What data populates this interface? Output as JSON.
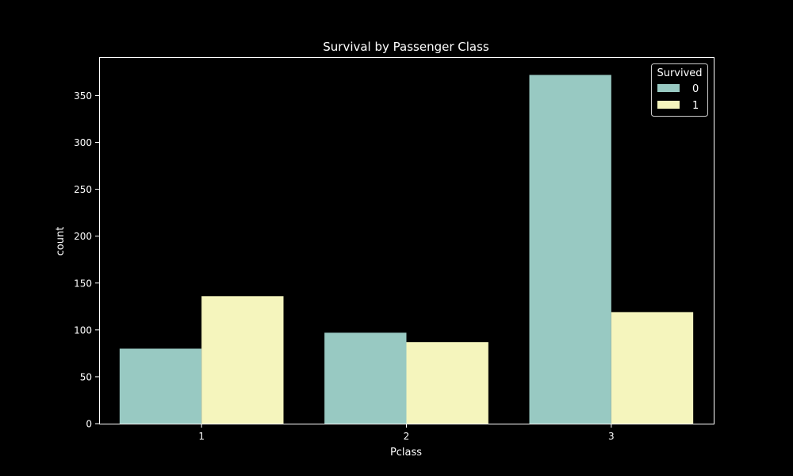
{
  "chart_data": {
    "type": "bar",
    "title": "Survival by Passenger Class",
    "xlabel": "Pclass",
    "ylabel": "count",
    "categories": [
      "1",
      "2",
      "3"
    ],
    "series": [
      {
        "name": "0",
        "values": [
          80,
          97,
          372
        ],
        "color": "#98c9c2"
      },
      {
        "name": "1",
        "values": [
          136,
          87,
          119
        ],
        "color": "#f5f5bd"
      }
    ],
    "ylim": [
      0,
      391
    ],
    "yticks": [
      0,
      50,
      100,
      150,
      200,
      250,
      300,
      350
    ],
    "legend": {
      "title": "Survived",
      "placement": "top-right"
    },
    "grid": false,
    "colors": {
      "background": "#000000",
      "axes": "#ffffff",
      "text": "#ffffff"
    }
  }
}
